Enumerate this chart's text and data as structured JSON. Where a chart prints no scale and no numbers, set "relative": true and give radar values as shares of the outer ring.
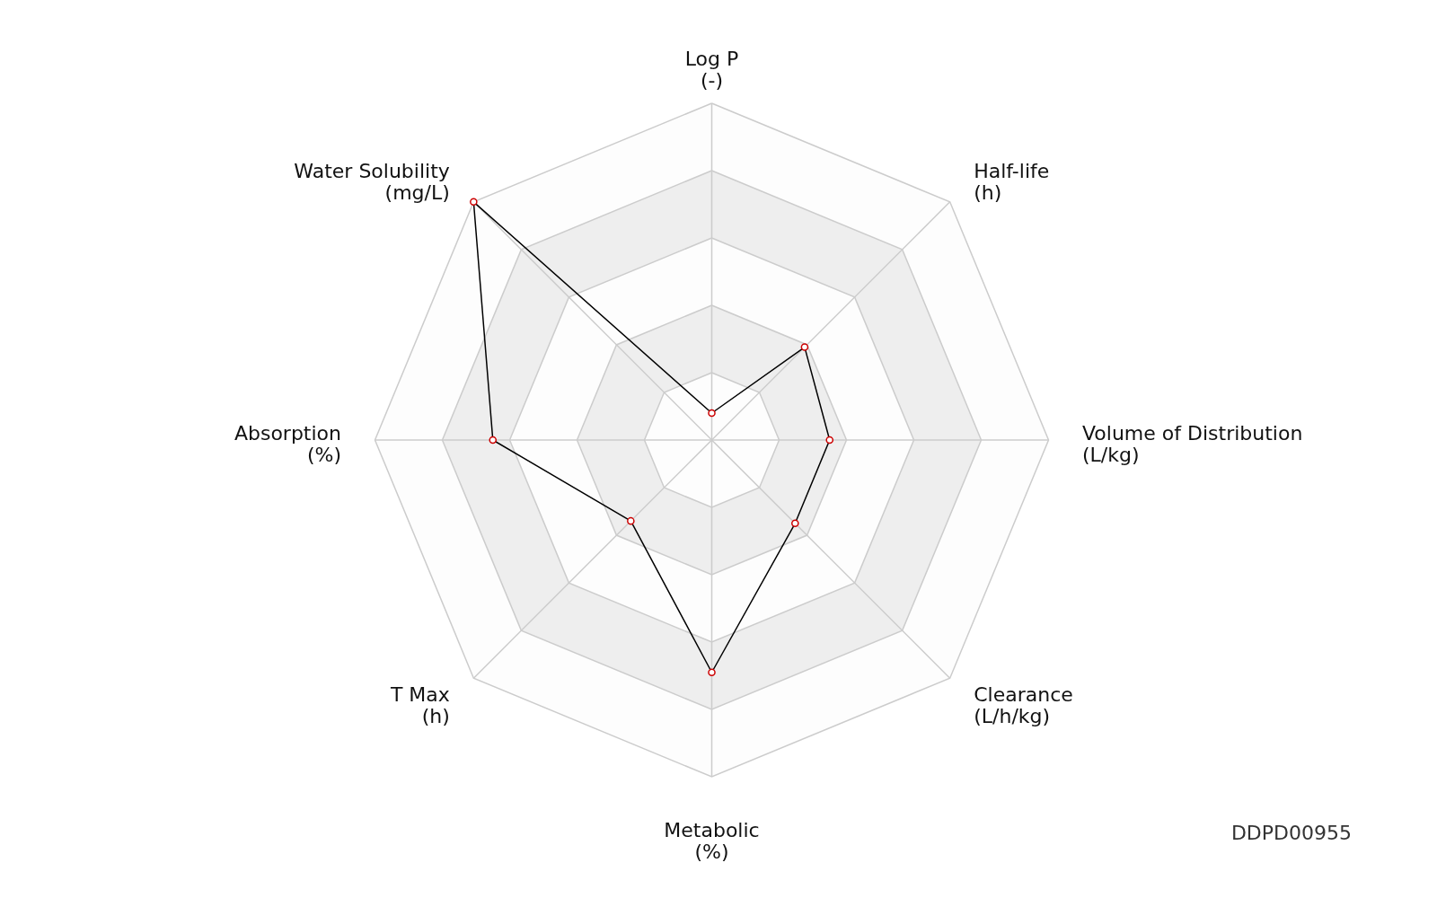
{
  "chart_data": {
    "type": "radar",
    "relative": true,
    "grid": true,
    "marker": "circle",
    "categories": [
      "Log P\n(-)",
      "Half-life\n(h)",
      "Volume of Distribution\n(L/kg)",
      "Clearance\n(L/h/kg)",
      "Metabolic\n(%)",
      "T Max\n(h)",
      "Absorption\n(%)",
      "Water Solubility\n(mg/L)"
    ],
    "series": [
      {
        "color": "#000000",
        "values": [
          0.08,
          0.39,
          0.35,
          0.35,
          0.69,
          0.34,
          0.65,
          1.0
        ]
      }
    ],
    "annotations": [
      "DDPD00955"
    ]
  }
}
